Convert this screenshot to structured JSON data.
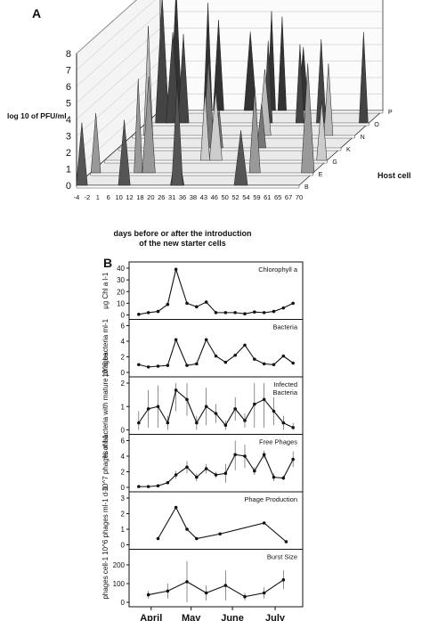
{
  "panelA": {
    "label": "A",
    "ylabel": "log 10 of PFU/ml",
    "xlabel_line1": "days before or after the introduction",
    "xlabel_line2": "of the new starter cells",
    "zlabel": "Host cell",
    "yticks": [
      0,
      1,
      2,
      3,
      4,
      5,
      6,
      7,
      8
    ],
    "xticks": [
      "-4",
      "-2",
      "1",
      "6",
      "10",
      "12",
      "18",
      "20",
      "26",
      "31",
      "36",
      "38",
      "43",
      "46",
      "50",
      "52",
      "54",
      "59",
      "61",
      "65",
      "67",
      "70"
    ],
    "rows": [
      "B",
      "E",
      "G",
      "K",
      "N",
      "O",
      "P"
    ]
  },
  "panelB": {
    "label": "B",
    "months": [
      "April",
      "May",
      "June",
      "July"
    ],
    "month_days": [
      10,
      39,
      69,
      100
    ]
  },
  "chart_data": [
    {
      "type": "line",
      "title": "Chlorophyll a",
      "ylabel": "µg Chl a l-1",
      "ylim": [
        0,
        40
      ],
      "yticks": [
        0,
        10,
        20,
        30,
        40
      ],
      "x": [
        1,
        8,
        15,
        22,
        28,
        36,
        43,
        50,
        57,
        64,
        71,
        78,
        85,
        92,
        99,
        106,
        113
      ],
      "y": [
        0.5,
        2,
        3,
        9,
        39,
        10,
        7,
        11,
        2,
        2,
        2,
        1,
        2.5,
        2,
        3,
        6,
        10
      ]
    },
    {
      "type": "line",
      "title": "Bacteria",
      "ylabel": "10^6 bacteria ml-1",
      "ylim": [
        0,
        6
      ],
      "yticks": [
        0,
        2,
        4,
        6
      ],
      "x": [
        1,
        8,
        15,
        22,
        28,
        36,
        43,
        50,
        57,
        64,
        71,
        78,
        85,
        92,
        99,
        106,
        113
      ],
      "y": [
        1,
        0.7,
        0.8,
        0.9,
        4.2,
        0.9,
        1.1,
        4.2,
        2.1,
        1.3,
        2.2,
        3.5,
        1.7,
        1.1,
        1,
        2.1,
        1.2
      ]
    },
    {
      "type": "line",
      "title": "Infected\nBacteria",
      "ylabel": "% of bacteria with mature phages",
      "ylim": [
        0,
        2
      ],
      "yticks": [
        0,
        1,
        2
      ],
      "x": [
        1,
        8,
        15,
        22,
        28,
        36,
        43,
        50,
        57,
        64,
        71,
        78,
        85,
        92,
        99,
        106,
        113
      ],
      "y": [
        0.3,
        0.9,
        1.0,
        0.3,
        1.7,
        1.3,
        0.3,
        1.0,
        0.7,
        0.2,
        0.9,
        0.4,
        1.1,
        1.3,
        0.8,
        0.3,
        0.1
      ],
      "err": [
        0.5,
        0.8,
        0.9,
        0.3,
        0.9,
        0.7,
        0.3,
        0.8,
        0.4,
        0.2,
        0.5,
        0.3,
        1.0,
        1.2,
        0.6,
        0.3,
        0.2
      ]
    },
    {
      "type": "line",
      "title": "Free Phages",
      "ylabel": "10^7 phages ml-1",
      "ylim": [
        0,
        6
      ],
      "yticks": [
        0,
        2,
        4,
        6
      ],
      "x": [
        1,
        8,
        15,
        22,
        28,
        36,
        43,
        50,
        57,
        64,
        71,
        78,
        85,
        92,
        99,
        106,
        113
      ],
      "y": [
        0.1,
        0.1,
        0.2,
        0.6,
        1.6,
        2.6,
        1.3,
        2.4,
        1.6,
        1.8,
        4.2,
        4.0,
        2.1,
        4.2,
        1.3,
        1.2,
        3.6
      ],
      "err": [
        0.05,
        0.05,
        0.1,
        0.2,
        0.5,
        0.8,
        0.5,
        0.6,
        0.4,
        1.2,
        2.0,
        1.5,
        0.5,
        0.5,
        0.5,
        0.3,
        1.0
      ]
    },
    {
      "type": "line",
      "title": "Phage Production",
      "ylabel": "10^6 phages ml-1 d-1",
      "ylim": [
        0,
        3
      ],
      "yticks": [
        0,
        1,
        2,
        3
      ],
      "x": [
        15,
        28,
        36,
        43,
        60,
        92,
        108
      ],
      "y": [
        0.4,
        2.4,
        1.0,
        0.4,
        0.7,
        1.4,
        0.2
      ]
    },
    {
      "type": "line",
      "title": "Burst Size",
      "ylabel": "phages cell-1",
      "ylim": [
        0,
        250
      ],
      "yticks": [
        0,
        100,
        200
      ],
      "x": [
        8,
        22,
        36,
        50,
        64,
        78,
        92,
        106
      ],
      "y": [
        40,
        60,
        110,
        50,
        90,
        30,
        50,
        120
      ],
      "err": [
        20,
        40,
        110,
        40,
        80,
        20,
        30,
        50
      ]
    }
  ]
}
